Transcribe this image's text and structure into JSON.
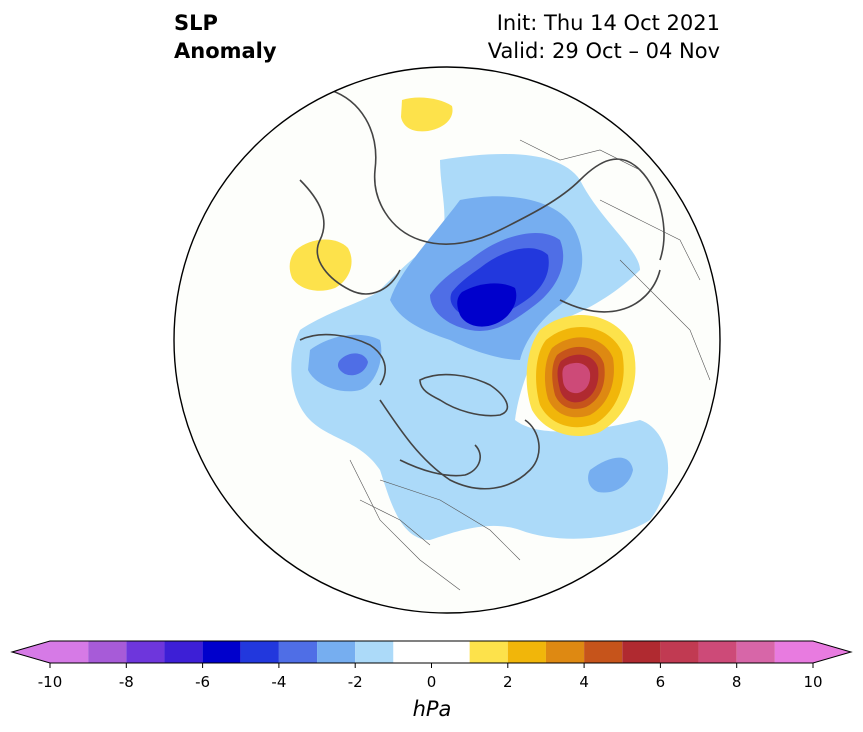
{
  "title": {
    "left_lines": [
      "SLP",
      "Anomaly"
    ],
    "right_lines": [
      "Init: Thu 14 Oct 2021",
      "Valid: 29 Oct – 04 Nov"
    ]
  },
  "map": {
    "projection": "north-polar-stereographic",
    "background": "#fdfefb",
    "coastline_color": "#444444",
    "anomaly_features": [
      {
        "name": "eurasia-low-center",
        "value": -7,
        "color": "#0000cc"
      },
      {
        "name": "eurasia-low-ring",
        "value": -5,
        "color": "#2238dd"
      },
      {
        "name": "alaska-low",
        "value": -4,
        "color": "#4f6ee6"
      },
      {
        "name": "atlantic-low",
        "value": -3,
        "color": "#76aef0"
      },
      {
        "name": "broad-negative",
        "value": -1.5,
        "color": "#acdaf9"
      },
      {
        "name": "bering-high",
        "value": 9,
        "color": "#cd4a78"
      },
      {
        "name": "bering-high-ring",
        "value": 7,
        "color": "#b02a30"
      },
      {
        "name": "europe-high",
        "value": 1.5,
        "color": "#fde24b"
      },
      {
        "name": "arctic-high",
        "value": 1.5,
        "color": "#fde24b"
      }
    ]
  },
  "colorbar": {
    "unit_label": "hPa",
    "ticks": [
      "-10",
      "-8",
      "-6",
      "-4",
      "-2",
      "0",
      "2",
      "4",
      "6",
      "8",
      "10"
    ],
    "levels": [
      -10,
      -9,
      -8,
      -7,
      -6,
      -5,
      -4,
      -3,
      -2,
      -1,
      1,
      2,
      3,
      4,
      5,
      6,
      7,
      8,
      9,
      10
    ],
    "colors": [
      "#a75bd8",
      "#6e36dc",
      "#3d1fd6",
      "#0000cc",
      "#2238dd",
      "#4f6ee6",
      "#76aef0",
      "#acdaf9",
      "#ffffff",
      "#fde24b",
      "#f1b60a",
      "#de8912",
      "#c6541b",
      "#b02a30",
      "#c13a52",
      "#cd4a78",
      "#d766a8"
    ],
    "extend_low_color": "#d67ae6",
    "extend_high_color": "#e87be0"
  }
}
